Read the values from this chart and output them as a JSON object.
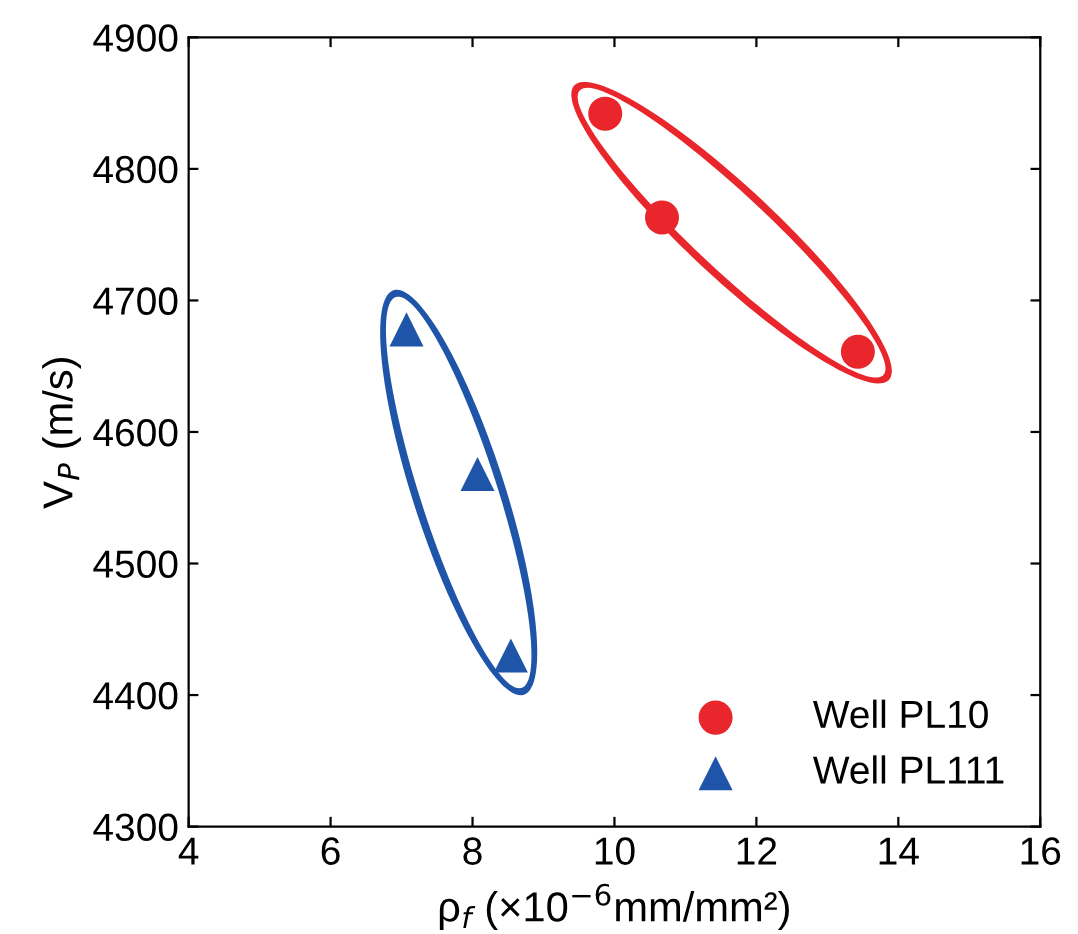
{
  "chart_data": {
    "type": "scatter",
    "xlabel": "ρ$_{f}$ (×10$^{−6}$mm/mm²)",
    "ylabel": "V$_{P}$ (m/s)",
    "series": [
      {
        "name": "Well PL10",
        "color": "#e8262b",
        "marker": "circle",
        "x": [
          9.87,
          10.67,
          13.43
        ],
        "values": [
          4842,
          4763,
          4661
        ]
      },
      {
        "name": "Well PL111",
        "color": "#1f55a8",
        "marker": "triangle",
        "x": [
          7.07,
          8.07,
          8.54
        ],
        "values": [
          4678,
          4568,
          4430
        ]
      }
    ],
    "xlim": [
      4,
      16
    ],
    "xticks": [
      4,
      6,
      8,
      10,
      12,
      14,
      16
    ],
    "ylim": [
      4300,
      4900
    ],
    "yticks": [
      4300,
      4400,
      4500,
      4600,
      4700,
      4800,
      4900
    ],
    "grid": false,
    "legend": "bottom right"
  }
}
